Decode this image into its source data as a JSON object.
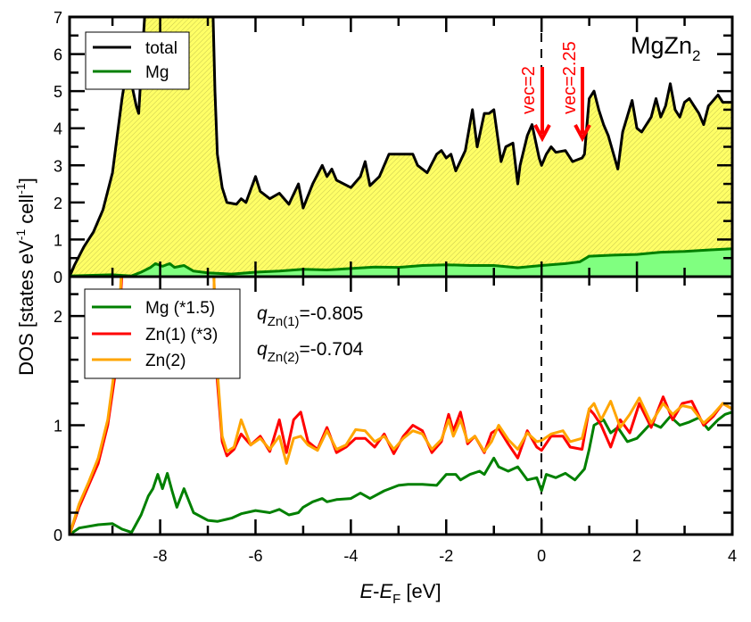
{
  "chart_data": [
    {
      "panel": "top",
      "type": "area",
      "title": "MgZn2",
      "title_main": "MgZn",
      "title_sub": "2",
      "xlim": [
        -9.9,
        4
      ],
      "ylim": [
        0,
        7
      ],
      "yticks": [
        "0",
        "1",
        "2",
        "3",
        "4",
        "5",
        "6",
        "7"
      ],
      "legend": {
        "placement": "top-left",
        "entries": [
          {
            "label": "total",
            "color": "#000000"
          },
          {
            "label": "Mg",
            "color": "#008000"
          }
        ]
      },
      "annotations": [
        {
          "text": "vec=2",
          "x": 0.0,
          "color": "#ff0000"
        },
        {
          "text": "vec=2.25",
          "x": 0.85,
          "color": "#ff0000"
        }
      ],
      "fill_colors": {
        "total": "#ffff66",
        "Mg": "#80ff80"
      },
      "series": [
        {
          "name": "total",
          "color": "#000000",
          "x": [
            -9.9,
            -9.8,
            -9.6,
            -9.4,
            -9.2,
            -9.0,
            -8.8,
            -8.7,
            -8.6,
            -8.5,
            -8.45,
            -8.4,
            -8.3,
            -6.9,
            -6.85,
            -6.8,
            -6.7,
            -6.6,
            -6.4,
            -6.3,
            -6.2,
            -6.0,
            -5.9,
            -5.7,
            -5.5,
            -5.3,
            -5.1,
            -5.0,
            -4.8,
            -4.6,
            -4.5,
            -4.4,
            -4.3,
            -4.0,
            -3.8,
            -3.7,
            -3.6,
            -3.4,
            -3.2,
            -2.9,
            -2.7,
            -2.6,
            -2.4,
            -2.2,
            -2.1,
            -2.0,
            -1.9,
            -1.8,
            -1.6,
            -1.45,
            -1.35,
            -1.2,
            -1.1,
            -1.0,
            -0.85,
            -0.75,
            -0.6,
            -0.5,
            -0.45,
            -0.3,
            -0.2,
            -0.05,
            0.0,
            0.1,
            0.2,
            0.3,
            0.5,
            0.65,
            0.85,
            0.9,
            1.0,
            1.1,
            1.2,
            1.3,
            1.4,
            1.6,
            1.7,
            1.9,
            2.0,
            2.1,
            2.3,
            2.4,
            2.5,
            2.6,
            2.7,
            2.8,
            2.9,
            3.0,
            3.1,
            3.2,
            3.3,
            3.4,
            3.5,
            3.7,
            3.8,
            4.0
          ],
          "values": [
            0,
            0.3,
            0.8,
            1.2,
            1.8,
            2.8,
            4.8,
            5.6,
            5.2,
            4.6,
            4.4,
            5.5,
            7.5,
            7.5,
            5.0,
            3.3,
            2.4,
            2.0,
            1.95,
            2.1,
            2.0,
            2.7,
            2.3,
            2.1,
            2.25,
            1.95,
            2.5,
            1.85,
            2.5,
            3.0,
            2.7,
            2.9,
            2.6,
            2.4,
            2.7,
            3.1,
            2.45,
            2.7,
            3.3,
            3.3,
            3.3,
            3.0,
            2.8,
            3.3,
            3.4,
            3.2,
            3.3,
            2.85,
            3.4,
            4.5,
            3.5,
            4.4,
            4.4,
            4.5,
            3.1,
            3.5,
            3.6,
            2.5,
            3.0,
            3.8,
            4.1,
            3.2,
            3.0,
            3.3,
            3.5,
            3.35,
            3.4,
            3.1,
            3.2,
            3.3,
            4.8,
            5.0,
            4.5,
            4.1,
            3.8,
            2.9,
            3.9,
            4.75,
            4.0,
            3.9,
            4.3,
            4.8,
            4.3,
            4.6,
            5.2,
            4.5,
            4.3,
            4.7,
            4.8,
            4.6,
            4.4,
            4.1,
            4.6,
            4.9,
            4.7,
            4.7
          ]
        },
        {
          "name": "Mg",
          "color": "#008000",
          "x": [
            -9.9,
            -9.0,
            -8.6,
            -8.4,
            -8.2,
            -8.1,
            -7.95,
            -7.8,
            -7.7,
            -7.5,
            -7.3,
            -7.0,
            -6.5,
            -6.0,
            -5.5,
            -5.0,
            -4.5,
            -4.0,
            -3.5,
            -3.0,
            -2.5,
            -2.0,
            -1.5,
            -1.0,
            -0.5,
            0.0,
            0.5,
            0.8,
            1.0,
            1.5,
            2.0,
            2.5,
            3.0,
            3.5,
            4.0
          ],
          "values": [
            0.02,
            0.05,
            0.02,
            0.12,
            0.25,
            0.35,
            0.28,
            0.35,
            0.25,
            0.3,
            0.15,
            0.1,
            0.07,
            0.12,
            0.15,
            0.2,
            0.18,
            0.22,
            0.26,
            0.25,
            0.3,
            0.32,
            0.3,
            0.3,
            0.24,
            0.3,
            0.35,
            0.4,
            0.55,
            0.58,
            0.6,
            0.66,
            0.68,
            0.72,
            0.75
          ]
        }
      ]
    },
    {
      "panel": "bottom",
      "type": "line",
      "xlabel": "E-EF [eV]",
      "xlabel_parts": {
        "e": "E",
        "dash": "-",
        "e2": "E",
        "sub": "F",
        "unit": " [eV]"
      },
      "ylabel": "DOS [states eV-1 cell-1]",
      "ylabel_parts": {
        "a": "DOS [states eV",
        "sup1": "-1",
        "b": " cell",
        "sup2": "-1",
        "c": "]"
      },
      "xlim": [
        -9.9,
        4
      ],
      "ylim": [
        0,
        2.36
      ],
      "xticks": [
        "-8",
        "-6",
        "-4",
        "-2",
        "0",
        "2",
        "4"
      ],
      "yticks": [
        "0",
        "1",
        "2"
      ],
      "legend": {
        "placement": "top-left",
        "entries": [
          {
            "label": "Mg (*1.5)",
            "color": "#008000"
          },
          {
            "label": "Zn(1) (*3)",
            "color": "#ff0000"
          },
          {
            "label": "Zn(2)",
            "color": "#ffa500"
          }
        ]
      },
      "annotations": [
        {
          "q": "q",
          "sub": "Zn(1)",
          "value": "=-0.805"
        },
        {
          "q": "q",
          "sub": "Zn(2)",
          "value": "=-0.704"
        }
      ],
      "fermi_level": 0,
      "series": [
        {
          "name": "Mg (*1.5)",
          "color": "#008000",
          "x": [
            -9.9,
            -9.7,
            -9.3,
            -9.0,
            -8.8,
            -8.6,
            -8.4,
            -8.25,
            -8.15,
            -8.05,
            -7.95,
            -7.85,
            -7.75,
            -7.65,
            -7.5,
            -7.3,
            -7.0,
            -6.8,
            -6.5,
            -6.3,
            -6.0,
            -5.7,
            -5.5,
            -5.3,
            -5.1,
            -5.0,
            -4.8,
            -4.6,
            -4.5,
            -4.3,
            -4.0,
            -3.8,
            -3.6,
            -3.3,
            -3.0,
            -2.8,
            -2.5,
            -2.2,
            -2.0,
            -1.8,
            -1.7,
            -1.5,
            -1.3,
            -1.2,
            -1.0,
            -0.9,
            -0.7,
            -0.5,
            -0.3,
            -0.1,
            0.0,
            0.1,
            0.3,
            0.5,
            0.7,
            0.9,
            1.0,
            1.1,
            1.3,
            1.45,
            1.6,
            1.8,
            2.0,
            2.3,
            2.5,
            2.7,
            2.9,
            3.1,
            3.3,
            3.5,
            3.7,
            3.85,
            4.0
          ],
          "values": [
            0,
            0.06,
            0.09,
            0.1,
            0.05,
            0.02,
            0.18,
            0.35,
            0.42,
            0.55,
            0.42,
            0.56,
            0.4,
            0.25,
            0.42,
            0.2,
            0.13,
            0.12,
            0.15,
            0.19,
            0.22,
            0.2,
            0.23,
            0.18,
            0.2,
            0.25,
            0.3,
            0.33,
            0.3,
            0.32,
            0.33,
            0.38,
            0.33,
            0.4,
            0.45,
            0.46,
            0.46,
            0.45,
            0.55,
            0.55,
            0.5,
            0.55,
            0.58,
            0.55,
            0.7,
            0.62,
            0.58,
            0.62,
            0.5,
            0.52,
            0.4,
            0.55,
            0.52,
            0.56,
            0.5,
            0.6,
            0.78,
            1.0,
            1.05,
            0.93,
            0.98,
            0.85,
            0.88,
            1.02,
            0.98,
            1.08,
            1.0,
            1.03,
            1.07,
            0.96,
            1.05,
            1.1,
            1.12
          ]
        },
        {
          "name": "Zn(1) (*3)",
          "color": "#ff0000",
          "x": [
            -9.9,
            -9.7,
            -9.5,
            -9.3,
            -9.1,
            -8.9,
            -8.8,
            -8.7,
            -8.6,
            -6.9,
            -6.85,
            -6.8,
            -6.7,
            -6.6,
            -6.45,
            -6.3,
            -6.1,
            -5.9,
            -5.7,
            -5.5,
            -5.35,
            -5.2,
            -5.05,
            -4.9,
            -4.7,
            -4.5,
            -4.3,
            -4.1,
            -3.9,
            -3.7,
            -3.5,
            -3.3,
            -3.1,
            -2.9,
            -2.7,
            -2.5,
            -2.3,
            -2.1,
            -1.95,
            -1.85,
            -1.7,
            -1.55,
            -1.4,
            -1.2,
            -1.05,
            -0.9,
            -0.7,
            -0.5,
            -0.3,
            -0.1,
            0.0,
            0.2,
            0.45,
            0.6,
            0.85,
            1.0,
            1.1,
            1.25,
            1.45,
            1.65,
            1.85,
            2.05,
            2.3,
            2.55,
            2.75,
            2.95,
            3.15,
            3.4,
            3.6,
            3.8,
            4.0
          ],
          "values": [
            0,
            0.25,
            0.45,
            0.65,
            1.0,
            1.6,
            2.4,
            2.8,
            2.8,
            2.8,
            2.0,
            1.4,
            0.85,
            0.72,
            0.78,
            0.92,
            0.82,
            0.9,
            0.76,
            1.05,
            0.75,
            1.05,
            1.12,
            0.85,
            0.78,
            0.98,
            0.75,
            0.8,
            0.88,
            0.88,
            0.8,
            0.92,
            0.74,
            0.9,
            1.0,
            0.95,
            0.75,
            0.85,
            1.1,
            0.95,
            1.12,
            0.83,
            0.9,
            0.75,
            0.93,
            0.97,
            0.83,
            0.7,
            0.95,
            0.8,
            0.77,
            0.9,
            0.9,
            0.8,
            0.78,
            1.15,
            1.1,
            1.0,
            0.8,
            1.05,
            0.93,
            1.2,
            0.98,
            1.26,
            1.05,
            1.2,
            1.22,
            1.0,
            1.08,
            1.2,
            1.15
          ]
        },
        {
          "name": "Zn(2)",
          "color": "#ffa500",
          "x": [
            -9.9,
            -9.7,
            -9.5,
            -9.3,
            -9.1,
            -8.9,
            -8.8,
            -8.7,
            -8.6,
            -6.9,
            -6.85,
            -6.8,
            -6.7,
            -6.6,
            -6.45,
            -6.3,
            -6.1,
            -5.9,
            -5.7,
            -5.5,
            -5.35,
            -5.2,
            -5.05,
            -4.9,
            -4.7,
            -4.5,
            -4.3,
            -4.1,
            -3.9,
            -3.7,
            -3.5,
            -3.3,
            -3.1,
            -2.9,
            -2.7,
            -2.5,
            -2.3,
            -2.1,
            -1.95,
            -1.85,
            -1.7,
            -1.55,
            -1.4,
            -1.2,
            -1.05,
            -0.9,
            -0.7,
            -0.5,
            -0.3,
            -0.1,
            0.0,
            0.2,
            0.45,
            0.6,
            0.85,
            1.0,
            1.1,
            1.25,
            1.45,
            1.65,
            1.85,
            2.05,
            2.3,
            2.55,
            2.75,
            2.95,
            3.15,
            3.4,
            3.6,
            3.8,
            4.0
          ],
          "values": [
            0,
            0.28,
            0.48,
            0.7,
            1.05,
            1.7,
            2.5,
            2.8,
            2.8,
            2.8,
            2.0,
            1.5,
            0.9,
            0.76,
            0.8,
            1.05,
            0.82,
            0.88,
            0.78,
            0.9,
            0.65,
            0.88,
            0.9,
            0.82,
            0.77,
            0.95,
            0.78,
            0.82,
            0.96,
            0.95,
            0.85,
            0.9,
            0.78,
            0.88,
            0.95,
            0.92,
            0.78,
            0.87,
            1.05,
            0.9,
            1.05,
            0.85,
            0.9,
            0.76,
            0.85,
            1.0,
            0.87,
            0.78,
            0.93,
            0.85,
            0.86,
            0.92,
            0.95,
            0.85,
            0.88,
            1.15,
            1.2,
            1.05,
            1.22,
            0.98,
            1.1,
            1.25,
            1.02,
            1.2,
            1.1,
            1.18,
            1.16,
            1.02,
            1.1,
            1.2,
            1.15
          ]
        }
      ]
    }
  ]
}
